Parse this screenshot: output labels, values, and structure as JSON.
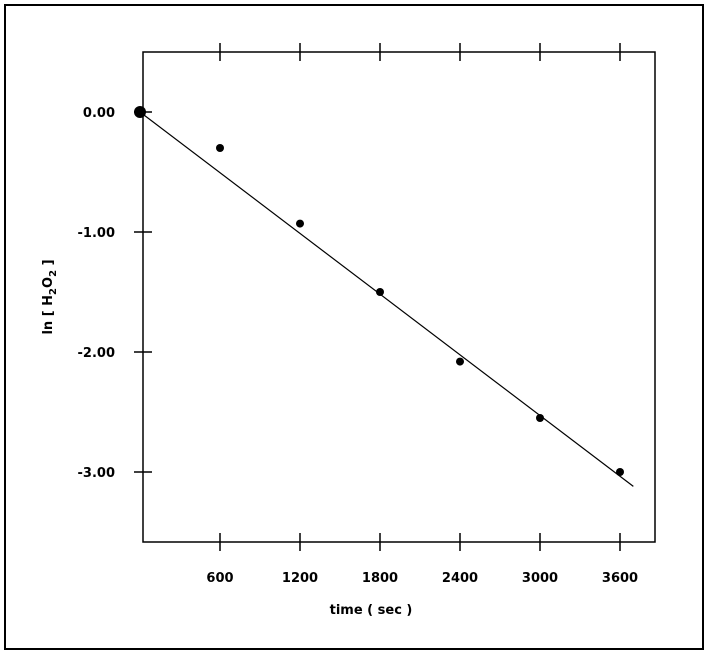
{
  "chart_data": {
    "type": "scatter",
    "xlabel": "time ( sec )",
    "ylabel_parts": [
      "ln [ H",
      "2",
      "O",
      "2",
      " ]"
    ],
    "x_ticks": [
      600,
      1200,
      1800,
      2400,
      3000,
      3600
    ],
    "y_ticks": [
      0.0,
      -1.0,
      -2.0,
      -3.0
    ],
    "y_tick_labels": [
      "0.00",
      "-1.00",
      "-2.00",
      "-3.00"
    ],
    "xlim": [
      0,
      3900
    ],
    "ylim": [
      -3.55,
      0.5
    ],
    "grid": false,
    "series": [
      {
        "points": [
          {
            "x": 0,
            "y": 0.0
          },
          {
            "x": 600,
            "y": -0.3
          },
          {
            "x": 1200,
            "y": -0.93
          },
          {
            "x": 1800,
            "y": -1.5
          },
          {
            "x": 2400,
            "y": -2.08
          },
          {
            "x": 3000,
            "y": -2.55
          },
          {
            "x": 3600,
            "y": -3.0
          }
        ],
        "fit_line": {
          "x0": 0,
          "y0": 0.0,
          "x1": 3700,
          "y1": -3.12
        }
      }
    ]
  }
}
